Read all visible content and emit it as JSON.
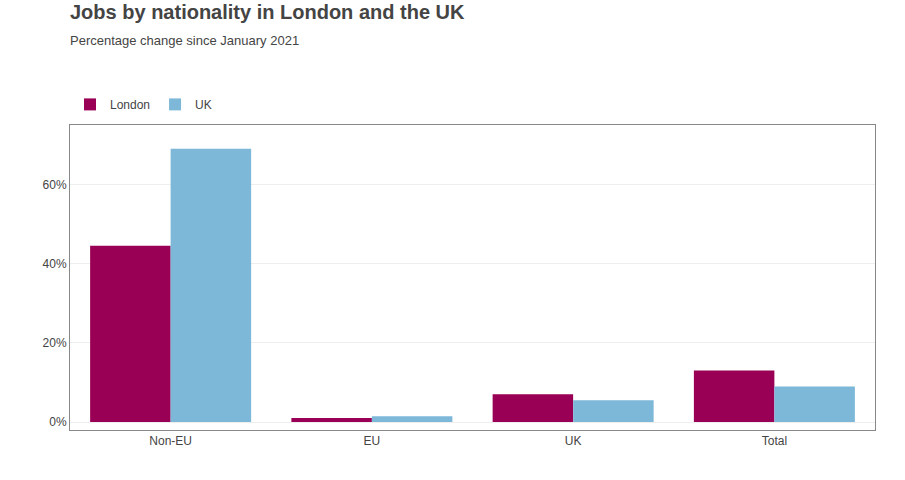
{
  "chart_data": {
    "type": "bar",
    "title": "Jobs by nationality in London and the UK",
    "subtitle": "Percentage change since January 2021",
    "categories": [
      "Non-EU",
      "EU",
      "UK",
      "Total"
    ],
    "series": [
      {
        "name": "London",
        "color": "#990055",
        "values": [
          44.5,
          1.0,
          7.0,
          13.0
        ]
      },
      {
        "name": "UK",
        "color": "#7db8d8",
        "values": [
          69.0,
          1.5,
          5.5,
          9.0
        ]
      }
    ],
    "ylim": [
      -2,
      75
    ],
    "yticks": [
      {
        "value": 0,
        "label": "0%"
      },
      {
        "value": 20,
        "label": "20%"
      },
      {
        "value": 40,
        "label": "40%"
      },
      {
        "value": 60,
        "label": "60%"
      }
    ],
    "grid": true,
    "legend": "upper left"
  }
}
